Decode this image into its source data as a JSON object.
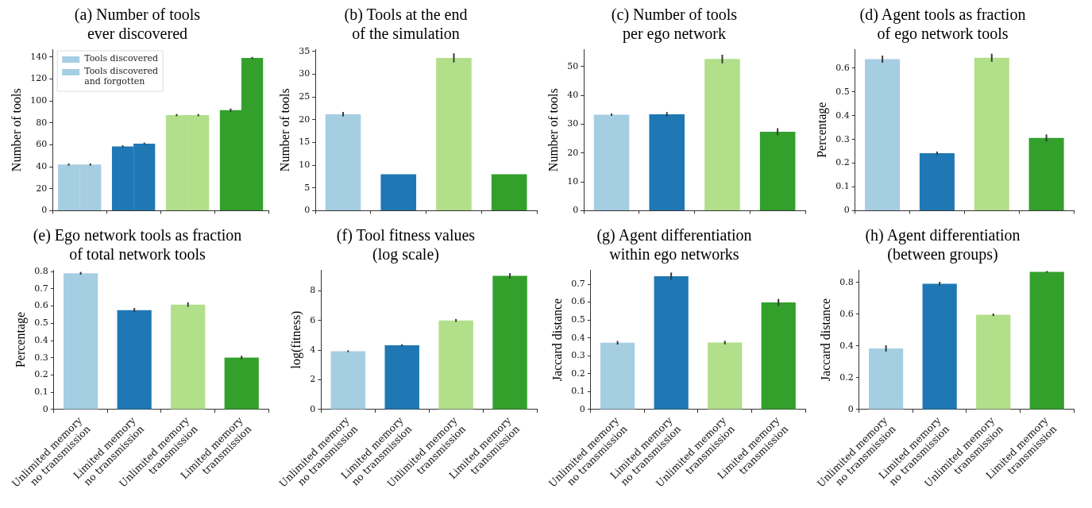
{
  "chart_data": [
    {
      "type": "bar",
      "title": "(a) Number of tools\never discovered",
      "ylabel": "Number of tools",
      "categories": [
        null,
        null,
        null,
        null
      ],
      "ylim": [
        0,
        147
      ],
      "yticks": [
        0,
        20,
        40,
        60,
        80,
        100,
        120,
        140
      ],
      "legend": "top left",
      "series": [
        {
          "name": "Tools discovered",
          "colors": [
            "#a6cee3",
            "#1f78b4",
            "#b2df8a",
            "#33a02c"
          ],
          "values": [
            42,
            58.5,
            87,
            91.5
          ],
          "errors": [
            1,
            1,
            1,
            1.5
          ]
        },
        {
          "name": "Tools discovered\nand forgotten",
          "colors": [
            "#a6cee3",
            "#1f78b4",
            "#b2df8a",
            "#33a02c"
          ],
          "values": [
            42,
            61,
            87,
            139
          ],
          "errors": [
            1,
            1,
            1,
            1
          ]
        }
      ]
    },
    {
      "type": "bar",
      "title": "(b) Tools at the end\nof the simulation",
      "ylabel": "Number of tools",
      "categories": [
        null,
        null,
        null,
        null
      ],
      "ylim": [
        0,
        35.5
      ],
      "yticks": [
        0,
        5,
        10,
        15,
        20,
        25,
        30,
        35
      ],
      "colors": [
        "#a6cee3",
        "#1f78b4",
        "#b2df8a",
        "#33a02c"
      ],
      "values": [
        21.2,
        8,
        33.6,
        8
      ],
      "errors": [
        0.5,
        null,
        1,
        null
      ]
    },
    {
      "type": "bar",
      "title": "(c) Number of tools\nper ego network",
      "ylabel": "Number of tools",
      "categories": [
        null,
        null,
        null,
        null
      ],
      "ylim": [
        0,
        56
      ],
      "yticks": [
        0,
        10,
        20,
        30,
        40,
        50
      ],
      "colors": [
        "#a6cee3",
        "#1f78b4",
        "#b2df8a",
        "#33a02c"
      ],
      "values": [
        33.3,
        33.4,
        52.6,
        27.4
      ],
      "errors": [
        0.4,
        0.8,
        1.5,
        1.2
      ]
    },
    {
      "type": "bar",
      "title": "(d) Agent tools as fraction\nof ego network tools",
      "ylabel": "Percentage",
      "categories": [
        null,
        null,
        null,
        null
      ],
      "ylim": [
        0,
        0.68
      ],
      "yticks": [
        0,
        0.1,
        0.2,
        0.3,
        0.4,
        0.5,
        0.6
      ],
      "colors": [
        "#a6cee3",
        "#1f78b4",
        "#b2df8a",
        "#33a02c"
      ],
      "values": [
        0.638,
        0.242,
        0.644,
        0.306
      ],
      "errors": [
        0.015,
        0.007,
        0.017,
        0.015
      ]
    },
    {
      "type": "bar",
      "title": "(e) Ego network tools as fraction\nof total network tools",
      "ylabel": "Percentage",
      "categories": [
        "Unlimited memory\nno transmission",
        "Limited memory\nno transmission",
        "Unlimited memory\ntransmission",
        "Limited memory\ntransmission"
      ],
      "ylim": [
        0,
        0.81
      ],
      "yticks": [
        0,
        0.1,
        0.2,
        0.3,
        0.4,
        0.5,
        0.6,
        0.7,
        0.8
      ],
      "colors": [
        "#a6cee3",
        "#1f78b4",
        "#b2df8a",
        "#33a02c"
      ],
      "values": [
        0.79,
        0.577,
        0.609,
        0.302
      ],
      "errors": [
        0.008,
        0.012,
        0.013,
        0.01
      ]
    },
    {
      "type": "bar",
      "title": "(f) Tool fitness values\n(log scale)",
      "ylabel": "log(fitness)",
      "categories": [
        "Unlimited memory\nno transmission",
        "Limited memory\nno transmission",
        "Unlimited memory\ntransmission",
        "Limited memory\ntransmission"
      ],
      "ylim": [
        0,
        9.4
      ],
      "yticks": [
        0,
        2,
        4,
        6,
        8
      ],
      "colors": [
        "#a6cee3",
        "#1f78b4",
        "#b2df8a",
        "#33a02c"
      ],
      "values": [
        3.93,
        4.33,
        6.0,
        9.0
      ],
      "errors": [
        0.06,
        0.07,
        0.1,
        0.18
      ]
    },
    {
      "type": "bar",
      "title": "(g) Agent differentiation\nwithin ego networks",
      "ylabel": "Jaccard distance",
      "categories": [
        "Unlimited memory\nno transmission",
        "Limited memory\nno transmission",
        "Unlimited memory\ntransmission",
        "Limited memory\ntransmission"
      ],
      "ylim": [
        0,
        0.78
      ],
      "yticks": [
        0,
        0.1,
        0.2,
        0.3,
        0.4,
        0.5,
        0.6,
        0.7
      ],
      "colors": [
        "#a6cee3",
        "#1f78b4",
        "#b2df8a",
        "#33a02c"
      ],
      "values": [
        0.373,
        0.745,
        0.374,
        0.598
      ],
      "errors": [
        0.01,
        0.02,
        0.01,
        0.02
      ]
    },
    {
      "type": "bar",
      "title": "(h) Agent differentiation\n(between groups)",
      "ylabel": "Jaccard distance",
      "categories": [
        "Unlimited memory\nno transmission",
        "Limited memory\nno transmission",
        "Unlimited memory\ntransmission",
        "Limited memory\ntransmission"
      ],
      "ylim": [
        0,
        0.88
      ],
      "yticks": [
        0,
        0.2,
        0.4,
        0.6,
        0.8
      ],
      "colors": [
        "#a6cee3",
        "#1f78b4",
        "#b2df8a",
        "#33a02c"
      ],
      "values": [
        0.385,
        0.793,
        0.597,
        0.868
      ],
      "errors": [
        0.02,
        0.012,
        0.008,
        0.005
      ]
    }
  ]
}
